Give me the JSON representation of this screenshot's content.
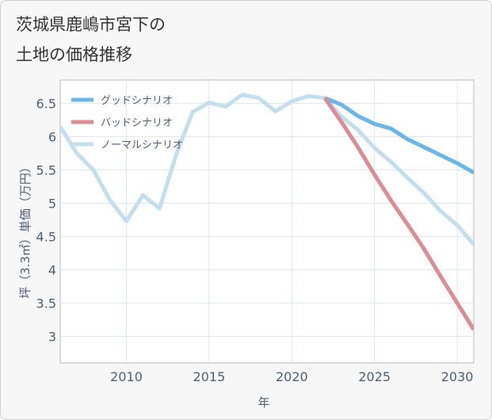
{
  "title": {
    "line1": "茨城県鹿嶋市宮下の",
    "line2": "土地の価格推移"
  },
  "chart_data": {
    "type": "line",
    "xlabel": "年",
    "ylabel": "坪（3.3㎡）単価（万円）",
    "xlim": [
      2006,
      2031
    ],
    "ylim": [
      2.6,
      6.85
    ],
    "x_ticks": [
      2010,
      2015,
      2020,
      2025,
      2030
    ],
    "y_ticks": [
      3,
      3.5,
      4,
      4.5,
      5,
      5.5,
      6,
      6.5
    ],
    "y_tick_labels": [
      "3",
      "3.5",
      "4",
      "4.5",
      "5",
      "5.5",
      "6",
      "6.5"
    ],
    "legend": [
      "グッドシナリオ",
      "バッドシナリオ",
      "ノーマルシナリオ"
    ],
    "legend_position": "top-left",
    "series": [
      {
        "name": "ノーマルシナリオ",
        "color": "#c2dff0",
        "x": [
          2006,
          2007,
          2008,
          2009,
          2010,
          2011,
          2012,
          2013,
          2014,
          2015,
          2016,
          2017,
          2018,
          2019,
          2020,
          2021,
          2022,
          2023,
          2024,
          2025,
          2026,
          2027,
          2028,
          2029,
          2030,
          2031
        ],
        "y": [
          6.15,
          5.75,
          5.5,
          5.05,
          4.73,
          5.12,
          4.92,
          5.72,
          6.37,
          6.51,
          6.45,
          6.63,
          6.58,
          6.38,
          6.53,
          6.61,
          6.58,
          6.3,
          6.1,
          5.83,
          5.62,
          5.38,
          5.15,
          4.88,
          4.67,
          4.38
        ]
      },
      {
        "name": "グッドシナリオ",
        "color": "#6ab6ea",
        "x": [
          2022,
          2023,
          2024,
          2025,
          2026,
          2027,
          2028,
          2029,
          2030,
          2031
        ],
        "y": [
          6.58,
          6.48,
          6.31,
          6.19,
          6.12,
          5.96,
          5.84,
          5.72,
          5.6,
          5.46
        ]
      },
      {
        "name": "バッドシナリオ",
        "color": "#dc8c92",
        "x": [
          2022,
          2023,
          2024,
          2025,
          2026,
          2027,
          2028,
          2029,
          2030,
          2031
        ],
        "y": [
          6.58,
          6.22,
          5.84,
          5.43,
          5.04,
          4.68,
          4.31,
          3.9,
          3.5,
          3.1
        ]
      }
    ]
  }
}
